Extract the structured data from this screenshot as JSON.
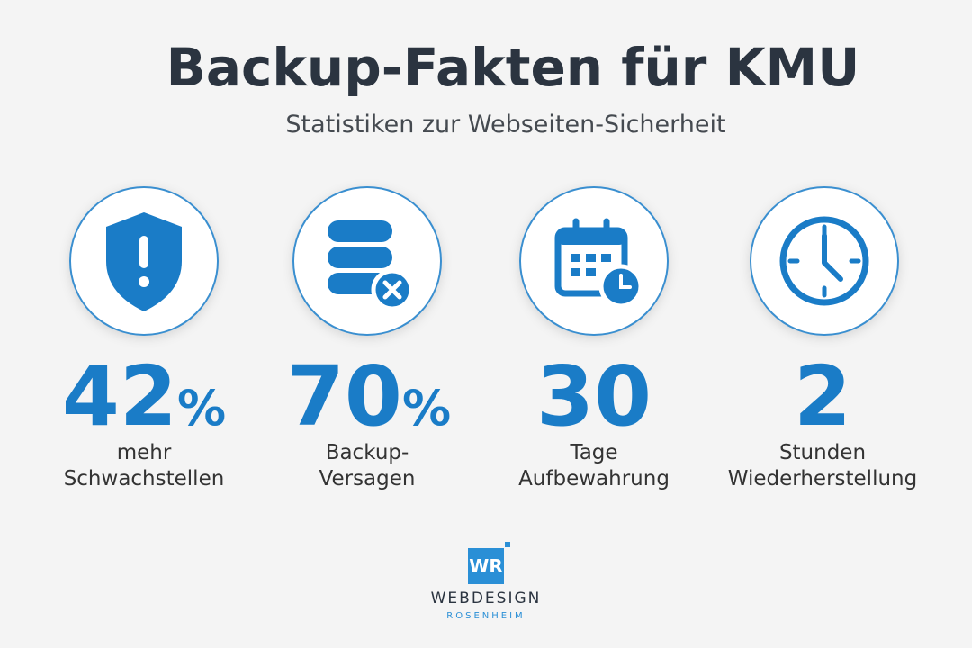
{
  "header": {
    "title": "Backup-Fakten für KMU",
    "subtitle": "Statistiken zur Webseiten-Sicherheit"
  },
  "stats": [
    {
      "value": 42,
      "unit": "%",
      "label": [
        "mehr",
        "Schwachstellen"
      ]
    },
    {
      "value": 70,
      "unit": "%",
      "label": [
        "Backup-",
        "Versagen"
      ]
    },
    {
      "value": 30,
      "label": [
        "Tage",
        "Aufbewahrung"
      ]
    },
    {
      "value": 2,
      "label": [
        "Stunden",
        "Wiederherstellung"
      ]
    }
  ],
  "logo": {
    "monogram": "WR",
    "name": "WEBDESIGN",
    "city": "ROSENHEIM"
  }
}
